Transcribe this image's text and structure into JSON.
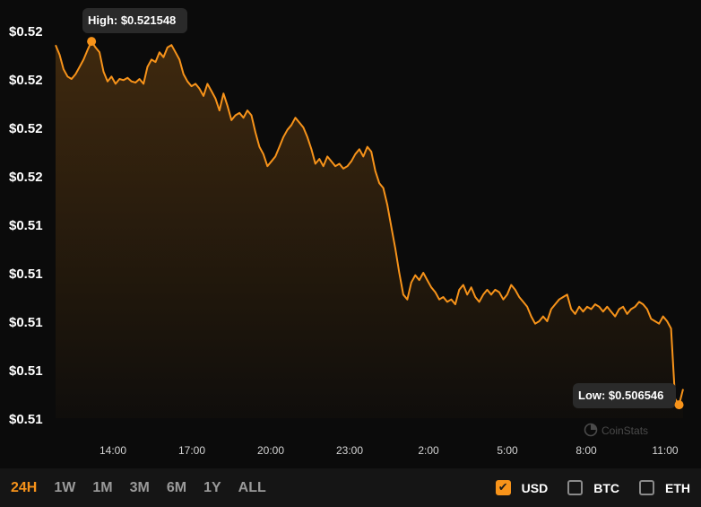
{
  "chart_data": {
    "type": "area",
    "y_tick_labels": [
      "$0.52",
      "$0.52",
      "$0.52",
      "$0.52",
      "$0.51",
      "$0.51",
      "$0.51",
      "$0.51",
      "$0.51"
    ],
    "x_tick_labels": [
      "14:00",
      "17:00",
      "20:00",
      "23:00",
      "2:00",
      "5:00",
      "8:00",
      "11:00"
    ],
    "ylim": [
      0.506,
      0.522
    ],
    "high_label": "High: $0.521548",
    "low_label": "Low: $0.506546",
    "high_value": 0.521548,
    "low_value": 0.506546,
    "watermark": "CoinStats",
    "line_color": "#f7931a",
    "values": [
      0.5214,
      0.521,
      0.5204,
      0.5201,
      0.52,
      0.5202,
      0.5205,
      0.5208,
      0.5212,
      0.52155,
      0.5213,
      0.5211,
      0.5203,
      0.5199,
      0.5201,
      0.5198,
      0.52,
      0.51995,
      0.52005,
      0.5199,
      0.51985,
      0.52,
      0.5198,
      0.5205,
      0.5208,
      0.5207,
      0.5211,
      0.5209,
      0.5213,
      0.5214,
      0.5211,
      0.5208,
      0.5202,
      0.5199,
      0.5197,
      0.5198,
      0.5196,
      0.5193,
      0.5198,
      0.5195,
      0.5192,
      0.5187,
      0.5194,
      0.5189,
      0.5183,
      0.5185,
      0.5186,
      0.5184,
      0.5187,
      0.5185,
      0.5178,
      0.5172,
      0.5169,
      0.5164,
      0.5166,
      0.5168,
      0.5172,
      0.5176,
      0.5179,
      0.5181,
      0.5184,
      0.5182,
      0.518,
      0.5176,
      0.5171,
      0.5165,
      0.5167,
      0.5164,
      0.5168,
      0.5166,
      0.5164,
      0.5165,
      0.5163,
      0.5164,
      0.5166,
      0.5169,
      0.5171,
      0.5168,
      0.5172,
      0.517,
      0.5162,
      0.5157,
      0.5155,
      0.5148,
      0.5139,
      0.513,
      0.512,
      0.5111,
      0.5109,
      0.5116,
      0.5119,
      0.5117,
      0.512,
      0.5117,
      0.5114,
      0.5112,
      0.5109,
      0.511,
      0.5108,
      0.5109,
      0.5107,
      0.5113,
      0.5115,
      0.5111,
      0.5114,
      0.511,
      0.5108,
      0.5111,
      0.5113,
      0.5111,
      0.5113,
      0.5112,
      0.5109,
      0.5111,
      0.5115,
      0.5113,
      0.511,
      0.5108,
      0.5106,
      0.5102,
      0.5099,
      0.51,
      0.5102,
      0.51,
      0.5105,
      0.5107,
      0.5109,
      0.511,
      0.5111,
      0.5105,
      0.5103,
      0.5106,
      0.5104,
      0.5106,
      0.5105,
      0.5107,
      0.5106,
      0.5104,
      0.5106,
      0.5104,
      0.5102,
      0.5105,
      0.5106,
      0.5103,
      0.5105,
      0.5106,
      0.5108,
      0.5107,
      0.5105,
      0.5101,
      0.51,
      0.5099,
      0.5102,
      0.51,
      0.5097,
      0.5068,
      0.50655,
      0.5072
    ]
  },
  "range_tabs": [
    "24H",
    "1W",
    "1M",
    "3M",
    "6M",
    "1Y",
    "ALL"
  ],
  "active_tab": "24H",
  "currencies": [
    {
      "label": "USD",
      "checked": true
    },
    {
      "label": "BTC",
      "checked": false
    },
    {
      "label": "ETH",
      "checked": false
    }
  ],
  "icons": {
    "checkmark": "✔",
    "watermark_icon": "pie-chart-icon"
  }
}
